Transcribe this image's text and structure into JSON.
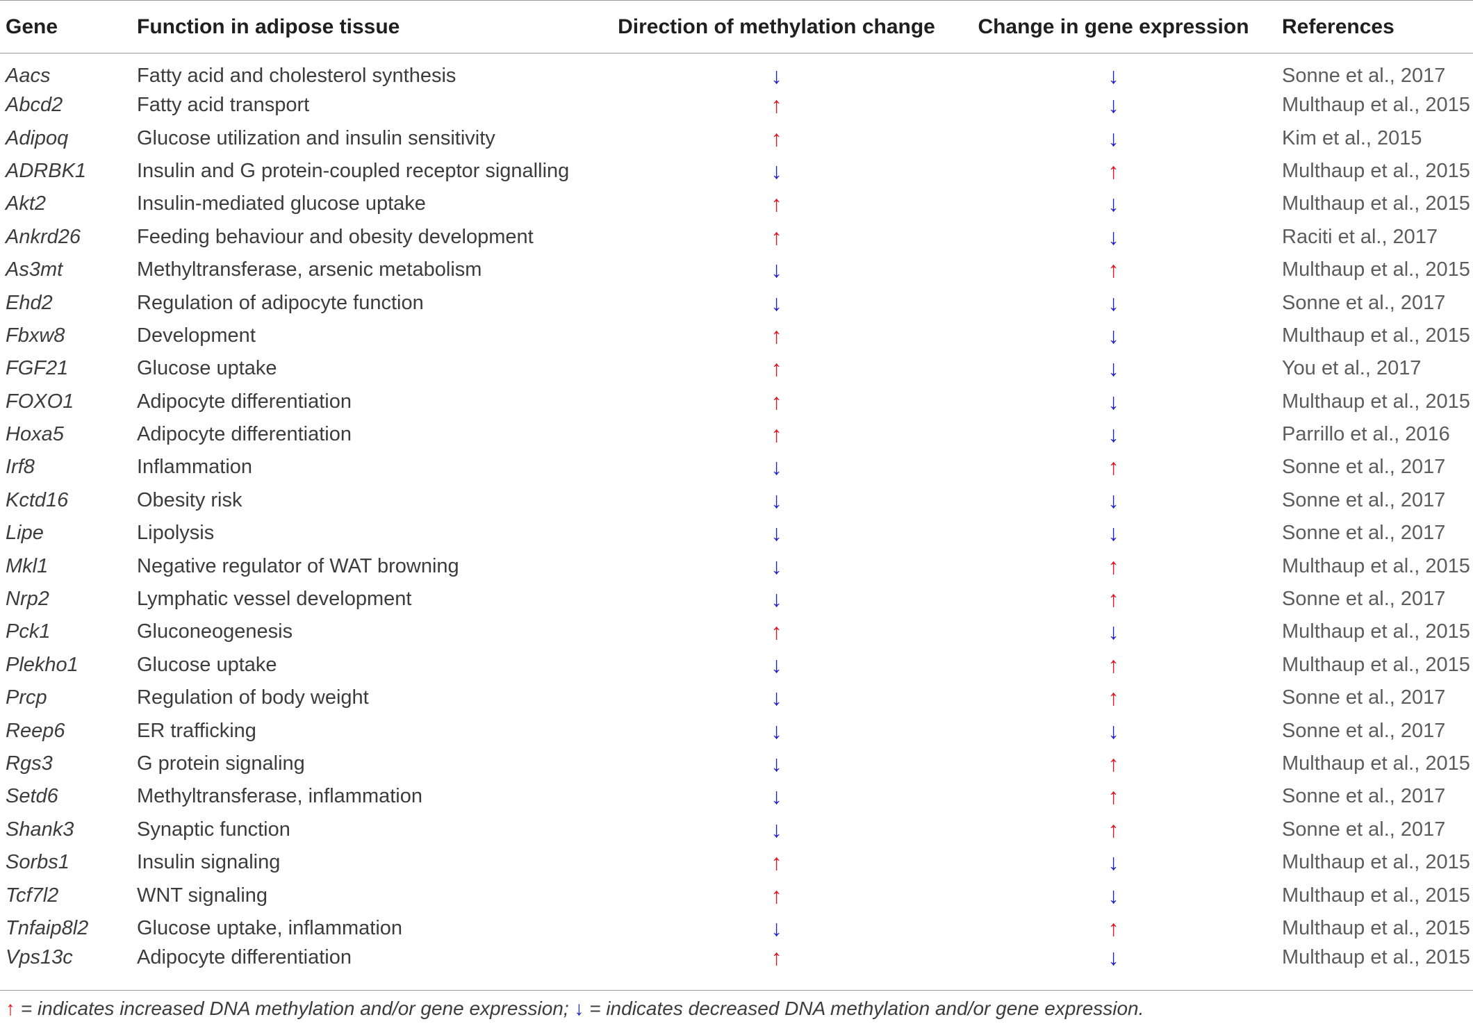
{
  "headers": {
    "gene": "Gene",
    "function": "Function in adipose tissue",
    "methylation": "Direction of methylation change",
    "expression": "Change in gene expression",
    "references": "References"
  },
  "arrow_glyphs": {
    "up": "↑",
    "down": "↓"
  },
  "colors": {
    "up": "#e0141e",
    "down": "#1e22c8",
    "rule": "#9a9a9a"
  },
  "rows": [
    {
      "gene": "Aacs",
      "function": "Fatty acid and cholesterol synthesis",
      "methylation": "down",
      "expression": "down",
      "reference": "Sonne et al., 2017"
    },
    {
      "gene": "Abcd2",
      "function": "Fatty acid transport",
      "methylation": "up",
      "expression": "down",
      "reference": "Multhaup et al., 2015"
    },
    {
      "gene": "Adipoq",
      "function": "Glucose utilization and insulin sensitivity",
      "methylation": "up",
      "expression": "down",
      "reference": "Kim et al., 2015"
    },
    {
      "gene": "ADRBK1",
      "function": "Insulin and G protein-coupled receptor signalling",
      "methylation": "down",
      "expression": "up",
      "reference": "Multhaup et al., 2015"
    },
    {
      "gene": "Akt2",
      "function": "Insulin-mediated glucose uptake",
      "methylation": "up",
      "expression": "down",
      "reference": "Multhaup et al., 2015"
    },
    {
      "gene": "Ankrd26",
      "function": "Feeding behaviour and obesity development",
      "methylation": "up",
      "expression": "down",
      "reference": "Raciti et al., 2017"
    },
    {
      "gene": "As3mt",
      "function": "Methyltransferase, arsenic metabolism",
      "methylation": "down",
      "expression": "up",
      "reference": "Multhaup et al., 2015"
    },
    {
      "gene": "Ehd2",
      "function": "Regulation of adipocyte function",
      "methylation": "down",
      "expression": "down",
      "reference": "Sonne et al., 2017"
    },
    {
      "gene": "Fbxw8",
      "function": "Development",
      "methylation": "up",
      "expression": "down",
      "reference": "Multhaup et al., 2015"
    },
    {
      "gene": "FGF21",
      "function": "Glucose uptake",
      "methylation": "up",
      "expression": "down",
      "reference": "You et al., 2017"
    },
    {
      "gene": "FOXO1",
      "function": "Adipocyte differentiation",
      "methylation": "up",
      "expression": "down",
      "reference": "Multhaup et al., 2015"
    },
    {
      "gene": "Hoxa5",
      "function": "Adipocyte differentiation",
      "methylation": "up",
      "expression": "down",
      "reference": "Parrillo et al., 2016"
    },
    {
      "gene": "Irf8",
      "function": "Inflammation",
      "methylation": "down",
      "expression": "up",
      "reference": "Sonne et al., 2017"
    },
    {
      "gene": "Kctd16",
      "function": "Obesity risk",
      "methylation": "down",
      "expression": "down",
      "reference": "Sonne et al., 2017"
    },
    {
      "gene": "Lipe",
      "function": "Lipolysis",
      "methylation": "down",
      "expression": "down",
      "reference": "Sonne et al., 2017"
    },
    {
      "gene": "Mkl1",
      "function": "Negative regulator of WAT browning",
      "methylation": "down",
      "expression": "up",
      "reference": "Multhaup et al., 2015"
    },
    {
      "gene": "Nrp2",
      "function": "Lymphatic vessel development",
      "methylation": "down",
      "expression": "up",
      "reference": "Sonne et al., 2017"
    },
    {
      "gene": "Pck1",
      "function": "Gluconeogenesis",
      "methylation": "up",
      "expression": "down",
      "reference": "Multhaup et al., 2015"
    },
    {
      "gene": "Plekho1",
      "function": "Glucose uptake",
      "methylation": "down",
      "expression": "up",
      "reference": "Multhaup et al., 2015"
    },
    {
      "gene": "Prcp",
      "function": "Regulation of body weight",
      "methylation": "down",
      "expression": "up",
      "reference": "Sonne et al., 2017"
    },
    {
      "gene": "Reep6",
      "function": "ER trafficking",
      "methylation": "down",
      "expression": "down",
      "reference": "Sonne et al., 2017"
    },
    {
      "gene": "Rgs3",
      "function": "G protein signaling",
      "methylation": "down",
      "expression": "up",
      "reference": "Multhaup et al., 2015"
    },
    {
      "gene": "Setd6",
      "function": "Methyltransferase, inflammation",
      "methylation": "down",
      "expression": "up",
      "reference": "Sonne et al., 2017"
    },
    {
      "gene": "Shank3",
      "function": "Synaptic function",
      "methylation": "down",
      "expression": "up",
      "reference": "Sonne et al., 2017"
    },
    {
      "gene": "Sorbs1",
      "function": "Insulin signaling",
      "methylation": "up",
      "expression": "down",
      "reference": "Multhaup et al., 2015"
    },
    {
      "gene": "Tcf7l2",
      "function": "WNT signaling",
      "methylation": "up",
      "expression": "down",
      "reference": "Multhaup et al., 2015"
    },
    {
      "gene": "Tnfaip8l2",
      "function": "Glucose uptake, inflammation",
      "methylation": "down",
      "expression": "up",
      "reference": "Multhaup et al., 2015"
    },
    {
      "gene": "Vps13c",
      "function": "Adipocyte differentiation",
      "methylation": "up",
      "expression": "down",
      "reference": "Multhaup et al., 2015"
    }
  ],
  "footnote": {
    "up_arrow": "↑",
    "up_text": " = indicates increased DNA methylation and/or gene expression; ",
    "down_arrow": "↓",
    "down_text": " = indicates decreased DNA methylation and/or gene expression."
  }
}
